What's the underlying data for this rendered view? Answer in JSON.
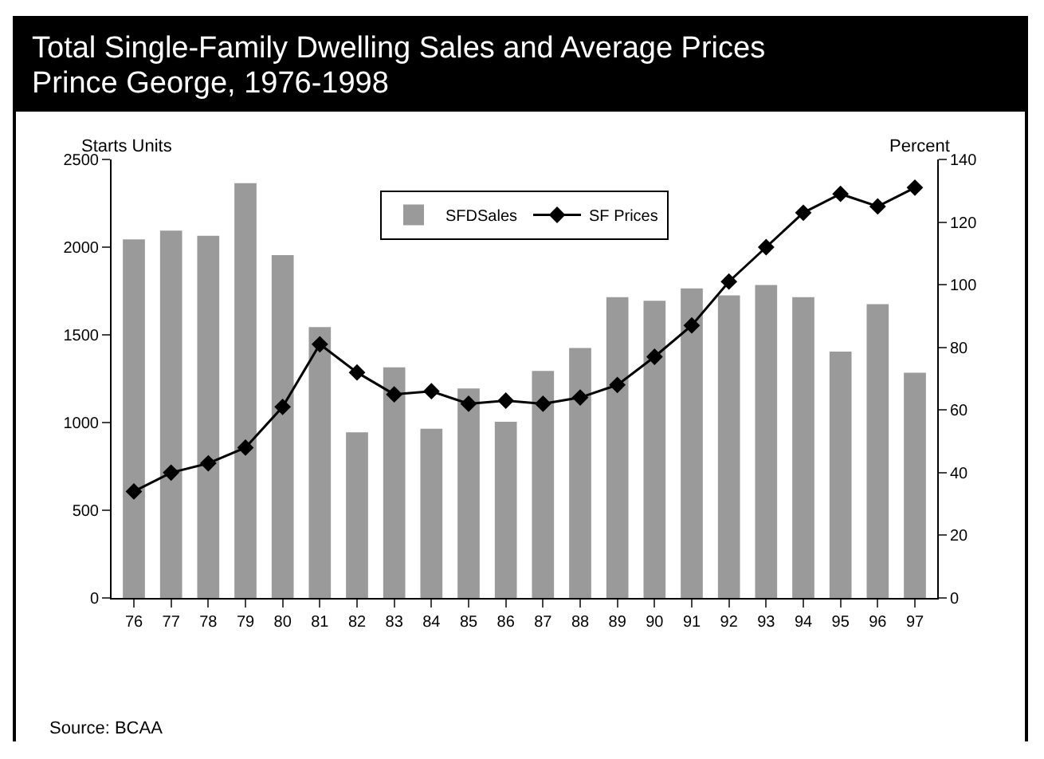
{
  "chart_data": {
    "type": "bar",
    "title": "Total Single-Family Dwelling Sales and Average Prices\nPrince George, 1976-1998",
    "ylabel": "Starts Units",
    "y2label": "Percent",
    "categories": [
      "76",
      "77",
      "78",
      "79",
      "80",
      "81",
      "82",
      "83",
      "84",
      "85",
      "86",
      "87",
      "88",
      "89",
      "90",
      "91",
      "92",
      "93",
      "94",
      "95",
      "96",
      "97"
    ],
    "series": [
      {
        "name": "SFDSales",
        "color": "#9a9a9a",
        "values": [
          2040,
          2090,
          2060,
          2360,
          1950,
          1540,
          940,
          1310,
          960,
          1190,
          1000,
          1290,
          1420,
          1710,
          1690,
          1760,
          1720,
          1780,
          1710,
          1400,
          1670,
          1280
        ]
      },
      {
        "name": "SF Prices",
        "type": "line",
        "axis": "y2",
        "color": "#000000",
        "marker": "diamond",
        "values": [
          34,
          40,
          43,
          48,
          61,
          81,
          72,
          65,
          66,
          62,
          63,
          62,
          64,
          68,
          77,
          87,
          101,
          112,
          123,
          129,
          125,
          131
        ]
      }
    ],
    "ylim": [
      0,
      2500
    ],
    "yticks": [
      0,
      500,
      1000,
      1500,
      2000,
      2500
    ],
    "y2lim": [
      0,
      140
    ],
    "y2ticks": [
      0,
      20,
      40,
      60,
      80,
      100,
      120,
      140
    ],
    "legend": "top",
    "grid": false,
    "annotations": [
      "Source: BCAA"
    ]
  }
}
